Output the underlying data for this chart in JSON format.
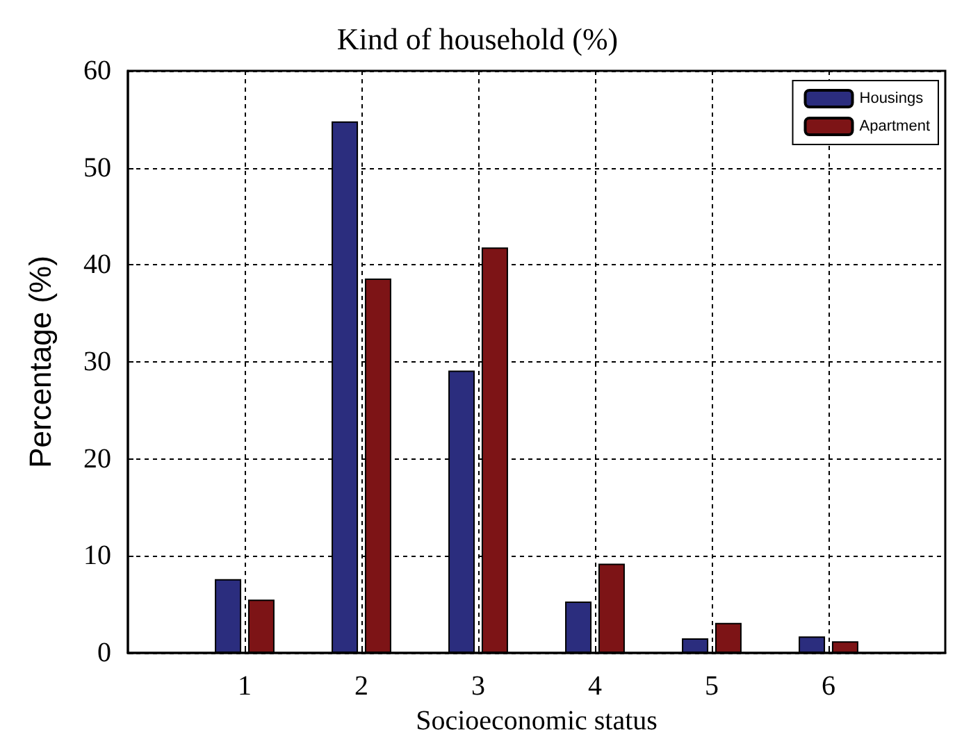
{
  "chart_data": {
    "type": "bar",
    "title": "Kind of household (%)",
    "xlabel": "Socioeconomic status",
    "ylabel": "Percentage (%)",
    "x": [
      1,
      2,
      3,
      4,
      5,
      6
    ],
    "xlim": [
      0,
      7
    ],
    "xticks": [
      1,
      2,
      3,
      4,
      5,
      6
    ],
    "ylim": [
      0,
      60
    ],
    "yticks": [
      0,
      10,
      20,
      30,
      40,
      50,
      60
    ],
    "series": [
      {
        "name": "Housings",
        "color": "#2b2d7e",
        "values": [
          7.6,
          54.8,
          29.1,
          5.3,
          1.5,
          1.7
        ]
      },
      {
        "name": "Apartment",
        "color": "#7d1416",
        "values": [
          5.5,
          38.6,
          41.8,
          9.2,
          3.1,
          1.2
        ]
      }
    ],
    "grid": true,
    "legend": "top right"
  }
}
